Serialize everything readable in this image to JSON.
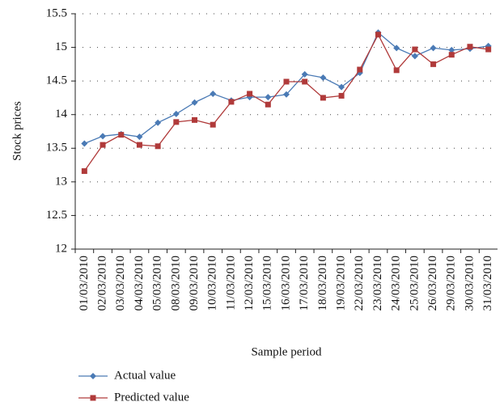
{
  "chart_data": {
    "type": "line",
    "x_label": "Sample period",
    "y_label": "Stock prices",
    "categories": [
      "01/03/2010",
      "02/03/2010",
      "03/03/2010",
      "04/03/2010",
      "05/03/2010",
      "08/03/2010",
      "09/03/2010",
      "10/03/2010",
      "11/03/2010",
      "12/03/2010",
      "15/03/2010",
      "16/03/2010",
      "17/03/2010",
      "18/03/2010",
      "19/03/2010",
      "22/03/2010",
      "23/03/2010",
      "24/03/2010",
      "25/03/2010",
      "26/03/2010",
      "29/03/2010",
      "30/03/2010",
      "31/03/2010"
    ],
    "series": [
      {
        "name": "Actual value",
        "color": "#4a7ab5",
        "marker": "diamond",
        "values": [
          13.57,
          13.68,
          13.71,
          13.67,
          13.88,
          14.01,
          14.18,
          14.31,
          14.21,
          14.26,
          14.26,
          14.3,
          14.6,
          14.55,
          14.41,
          14.62,
          15.22,
          14.99,
          14.87,
          14.99,
          14.96,
          14.98,
          15.02
        ]
      },
      {
        "name": "Predicted value",
        "color": "#b03a3a",
        "marker": "square",
        "values": [
          13.16,
          13.55,
          13.7,
          13.55,
          13.53,
          13.89,
          13.92,
          13.85,
          14.19,
          14.31,
          14.15,
          14.49,
          14.49,
          14.25,
          14.28,
          14.67,
          15.19,
          14.66,
          14.97,
          14.75,
          14.89,
          15.01,
          14.97
        ]
      }
    ],
    "ylim": [
      12,
      15.5
    ],
    "yticks": [
      12,
      12.5,
      13,
      13.5,
      14,
      14.5,
      15,
      15.5
    ],
    "grid": true
  }
}
